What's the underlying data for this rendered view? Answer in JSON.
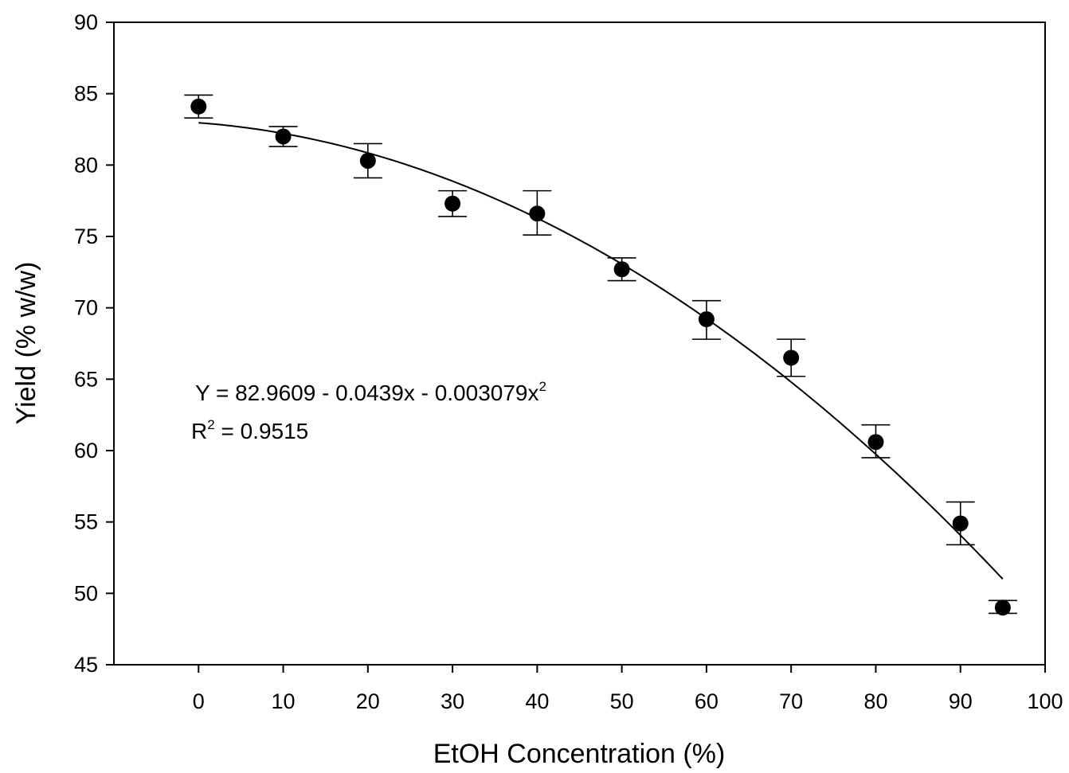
{
  "chart_data": {
    "type": "scatter",
    "title": "",
    "xlabel": "EtOH Concentration (%)",
    "ylabel": "Yield (% w/w)",
    "xlim": [
      -10,
      100
    ],
    "ylim": [
      45,
      90
    ],
    "x_ticks": [
      0,
      10,
      20,
      30,
      40,
      50,
      60,
      70,
      80,
      90,
      100
    ],
    "y_ticks": [
      45,
      50,
      55,
      60,
      65,
      70,
      75,
      80,
      85,
      90
    ],
    "grid": false,
    "series": [
      {
        "x": [
          0,
          10,
          20,
          30,
          40,
          50,
          60,
          70,
          80,
          90,
          95
        ],
        "y": [
          84.1,
          82.0,
          80.3,
          77.3,
          76.6,
          72.7,
          69.2,
          66.5,
          60.6,
          54.9,
          49.0
        ],
        "error_low": [
          83.3,
          81.3,
          79.1,
          76.4,
          75.1,
          71.9,
          67.8,
          65.2,
          59.5,
          53.4,
          48.6
        ],
        "error_high": [
          84.9,
          82.7,
          81.5,
          78.2,
          78.2,
          73.5,
          70.5,
          67.8,
          61.8,
          56.4,
          49.5
        ]
      }
    ],
    "fit": {
      "type": "quadratic",
      "coefficients": [
        82.9609,
        -0.0439,
        -0.003079
      ],
      "x_range": [
        0,
        95
      ]
    },
    "annotations": {
      "equation_base": "Y = 82.9609 - 0.0439x - 0.003079x",
      "equation_sup": "2",
      "r2_base": "R",
      "r2_sup": "2",
      "r2_value": " = 0.9515"
    }
  }
}
